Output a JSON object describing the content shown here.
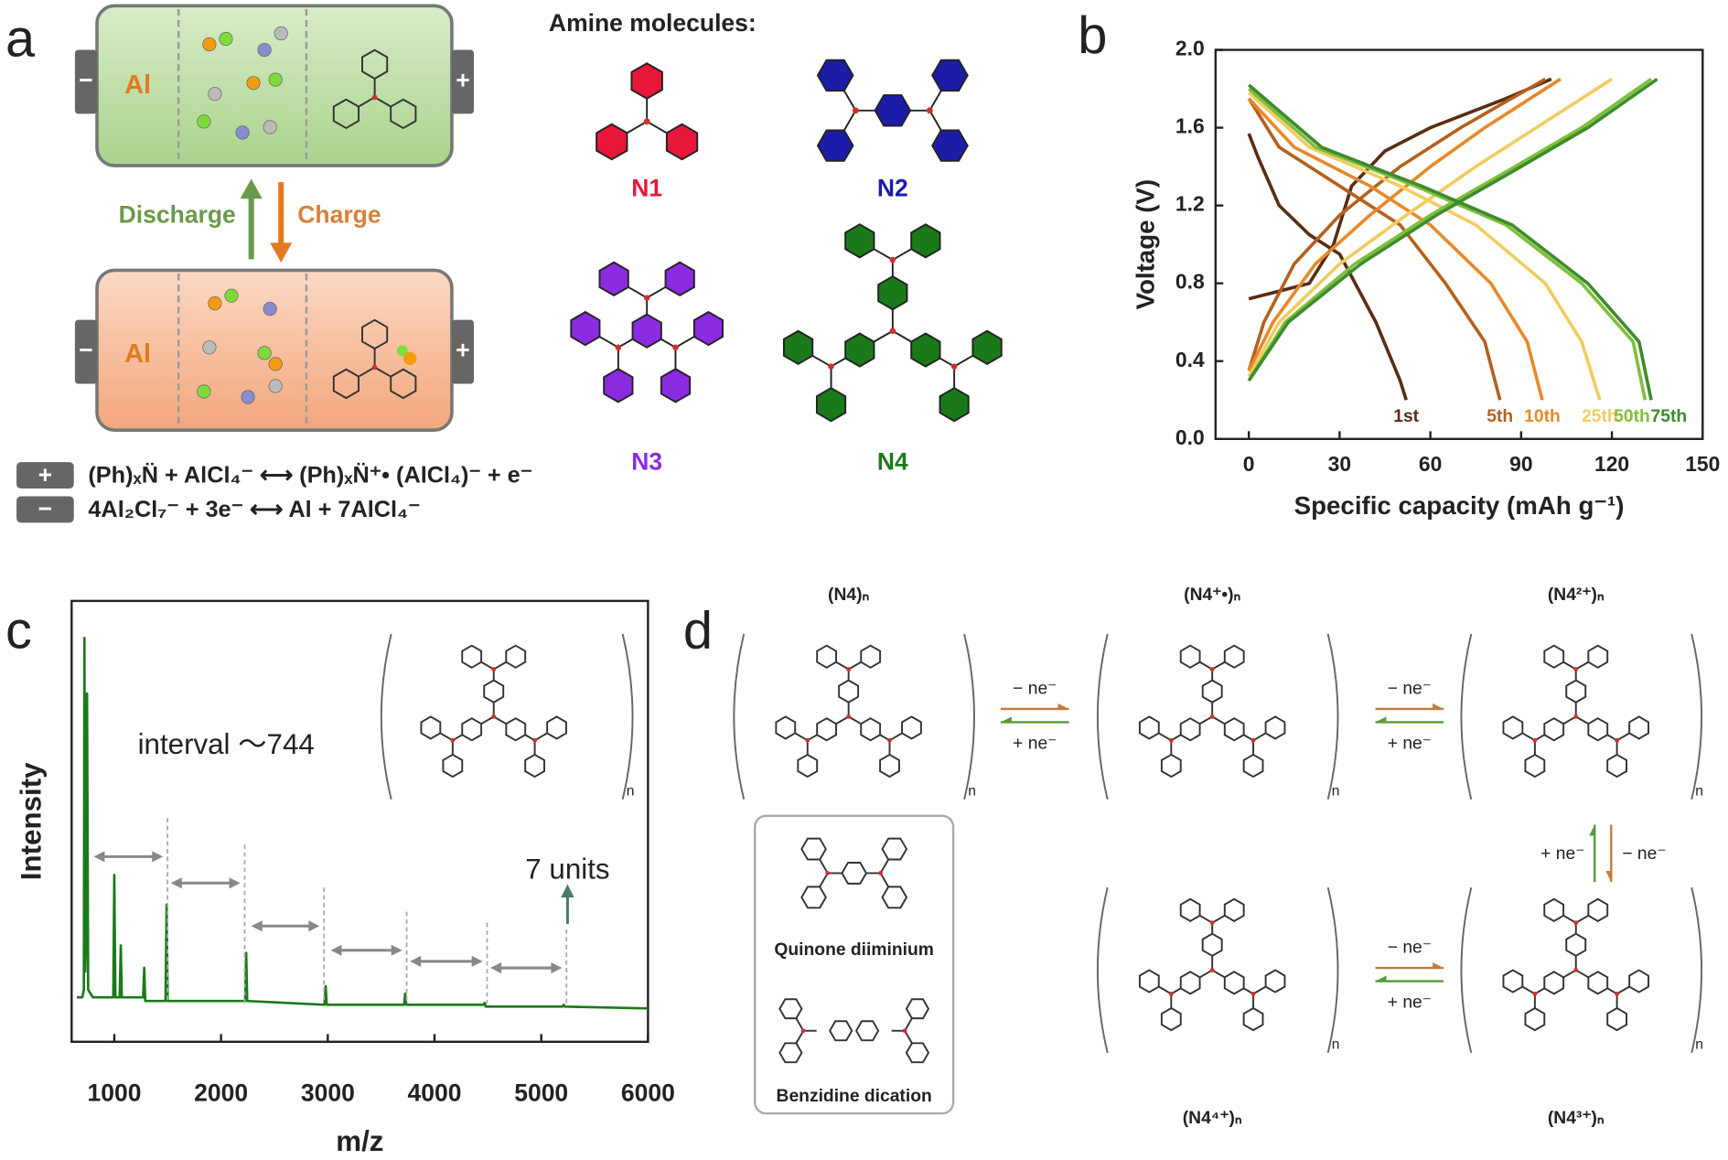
{
  "panel_labels": [
    "a",
    "b",
    "c",
    "d"
  ],
  "panel_a": {
    "anode": [
      "Al",
      "Al"
    ],
    "terminals": [
      "−",
      "+",
      "−",
      "+"
    ],
    "discharge": "Discharge",
    "charge": "Charge",
    "title": "Amine molecules:",
    "molecules": [
      "N1",
      "N2",
      "N3",
      "N4"
    ],
    "equations": [
      {
        "sign": "+",
        "text": "(Ph)ₓN̈ + AlCl₄⁻ ⟷ (Ph)ₓN̈⁺• (AlCl₄)⁻ + e⁻"
      },
      {
        "sign": "−",
        "text": "4Al₂Cl₇⁻ + 3e⁻ ⟷ Al + 7AlCl₄⁻"
      }
    ]
  },
  "chart_data": [
    {
      "type": "line",
      "xlabel": "Specific capacity (mAh g⁻¹)",
      "ylabel": "Voltage (V)",
      "xlim": [
        -11,
        150
      ],
      "xticks": [
        0,
        30,
        60,
        90,
        120,
        150
      ],
      "ylim": [
        0,
        2
      ],
      "yticks": [
        {
          "value": 0,
          "label": "0.0"
        },
        0.4,
        0.8,
        1.2,
        1.6,
        {
          "value": 2,
          "label": "2.0"
        }
      ],
      "series": [
        {
          "name": "1st",
          "color": "#5a2d12",
          "discharge": {
            "x": [
              0,
              3,
              10,
              20,
              30,
              42,
              50,
              52
            ],
            "values": [
              1.57,
              1.45,
              1.2,
              1.05,
              0.95,
              0.6,
              0.3,
              0.2
            ]
          },
          "charge": {
            "x": [
              0,
              10,
              20,
              28,
              34,
              45,
              60,
              85,
              100
            ],
            "values": [
              0.72,
              0.76,
              0.8,
              1.0,
              1.3,
              1.48,
              1.6,
              1.75,
              1.85
            ]
          }
        },
        {
          "name": "5th",
          "color": "#b5601e",
          "discharge": {
            "x": [
              0,
              10,
              30,
              50,
              65,
              78,
              83
            ],
            "values": [
              1.75,
              1.5,
              1.3,
              1.1,
              0.8,
              0.5,
              0.2
            ]
          },
          "charge": {
            "x": [
              0,
              5,
              15,
              30,
              50,
              70,
              98
            ],
            "values": [
              0.35,
              0.6,
              0.9,
              1.15,
              1.4,
              1.6,
              1.85
            ]
          }
        },
        {
          "name": "10th",
          "color": "#e8892a",
          "discharge": {
            "x": [
              0,
              15,
              40,
              60,
              80,
              92,
              97
            ],
            "values": [
              1.75,
              1.5,
              1.3,
              1.1,
              0.8,
              0.5,
              0.2
            ]
          },
          "charge": {
            "x": [
              0,
              8,
              22,
              40,
              60,
              78,
              103
            ],
            "values": [
              0.35,
              0.6,
              0.9,
              1.15,
              1.4,
              1.6,
              1.85
            ]
          }
        },
        {
          "name": "25th",
          "color": "#f2cc60",
          "discharge": {
            "x": [
              0,
              20,
              50,
              75,
              98,
              110,
              116
            ],
            "values": [
              1.78,
              1.5,
              1.3,
              1.1,
              0.8,
              0.5,
              0.2
            ]
          },
          "charge": {
            "x": [
              0,
              10,
              30,
              52,
              75,
              95,
              120
            ],
            "values": [
              0.32,
              0.6,
              0.9,
              1.15,
              1.4,
              1.6,
              1.85
            ]
          }
        },
        {
          "name": "50th",
          "color": "#7fbf3a",
          "discharge": {
            "x": [
              0,
              22,
              55,
              85,
              110,
              127,
              131
            ],
            "values": [
              1.8,
              1.5,
              1.3,
              1.1,
              0.8,
              0.5,
              0.2
            ]
          },
          "charge": {
            "x": [
              0,
              12,
              35,
              60,
              88,
              110,
              133
            ],
            "values": [
              0.3,
              0.6,
              0.9,
              1.15,
              1.4,
              1.6,
              1.85
            ]
          }
        },
        {
          "name": "75th",
          "color": "#3d8b2d",
          "discharge": {
            "x": [
              0,
              24,
              57,
              87,
              112,
              129,
              133
            ],
            "values": [
              1.82,
              1.5,
              1.3,
              1.1,
              0.8,
              0.5,
              0.2
            ]
          },
          "charge": {
            "x": [
              0,
              13,
              37,
              62,
              90,
              112,
              135
            ],
            "values": [
              0.3,
              0.6,
              0.9,
              1.15,
              1.4,
              1.6,
              1.85
            ]
          }
        }
      ]
    },
    {
      "type": "line",
      "xlabel": "m/z",
      "ylabel": "Intensity",
      "color": "#1a7a1a",
      "xlim": [
        600,
        6000
      ],
      "xticks": [
        1000,
        2000,
        3000,
        4000,
        5000,
        6000
      ],
      "ylim": [
        -0.09,
        1.1
      ],
      "x": [
        650,
        700,
        715,
        720,
        727,
        735,
        745,
        755,
        800,
        990,
        1000,
        1010,
        1050,
        1060,
        1070,
        1270,
        1280,
        1290,
        1480,
        1490,
        1500,
        2225,
        2235,
        2245,
        2970,
        2980,
        2990,
        3715,
        3725,
        3735,
        4460,
        4470,
        4480,
        5200,
        5210,
        5220,
        6000
      ],
      "values": [
        0.03,
        0.03,
        0.05,
        1.0,
        0.1,
        0.2,
        0.85,
        0.05,
        0.03,
        0.03,
        0.36,
        0.03,
        0.03,
        0.17,
        0.03,
        0.03,
        0.11,
        0.02,
        0.02,
        0.28,
        0.02,
        0.02,
        0.15,
        0.02,
        0.01,
        0.06,
        0.01,
        0.01,
        0.04,
        0.01,
        0.01,
        0.015,
        0.005,
        0.005,
        0.01,
        0.005,
        0.0
      ],
      "annotations": [
        "interval ～744",
        "7 units"
      ]
    }
  ],
  "panel_d": {
    "species": [
      "(N4)ₙ",
      "(N4⁺•)ₙ",
      "(N4²⁺)ₙ",
      "(N4³⁺)ₙ",
      "(N4⁴⁺)ₙ"
    ],
    "repeat_unit": "n",
    "steps": [
      {
        "forward": "− ne⁻",
        "back": "+ ne⁻"
      },
      {
        "forward": "− ne⁻",
        "back": "+ ne⁻"
      },
      {
        "forward": "− ne⁻",
        "back": "+ ne⁻"
      },
      {
        "forward": "− ne⁻",
        "back": "+ ne⁻"
      }
    ],
    "inset": [
      "Quinone diiminium",
      "Benzidine dication"
    ]
  }
}
